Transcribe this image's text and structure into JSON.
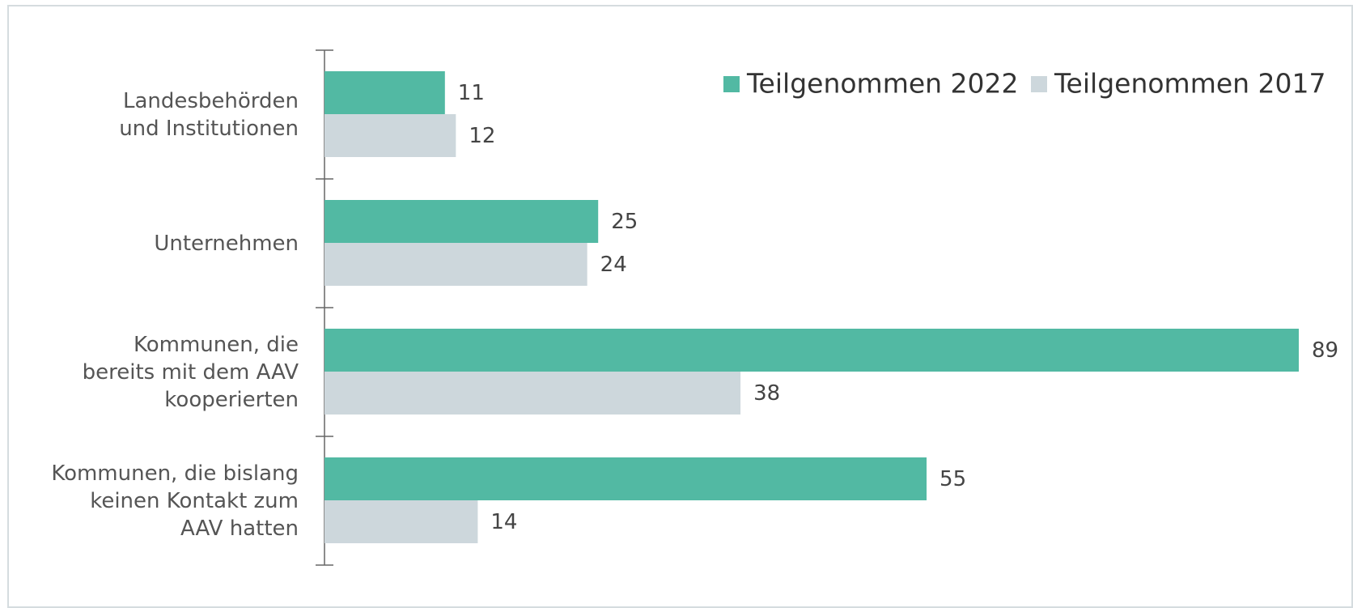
{
  "chart_data": {
    "type": "barh",
    "categories": [
      "Landesbehörden\nund Institutionen",
      "Unternehmen",
      "Kommunen, die\nbereits mit dem AAV\nkooperierten",
      "Kommunen, die bislang\nkeinen Kontakt zum\nAAV hatten"
    ],
    "series": [
      {
        "name": "Teilgenommen 2022",
        "color": "#52b9a3",
        "values": [
          11,
          25,
          89,
          55
        ]
      },
      {
        "name": "Teilgenommen 2017",
        "color": "#cdd7dc",
        "values": [
          12,
          24,
          38,
          14
        ]
      }
    ],
    "legend": "top-right"
  }
}
